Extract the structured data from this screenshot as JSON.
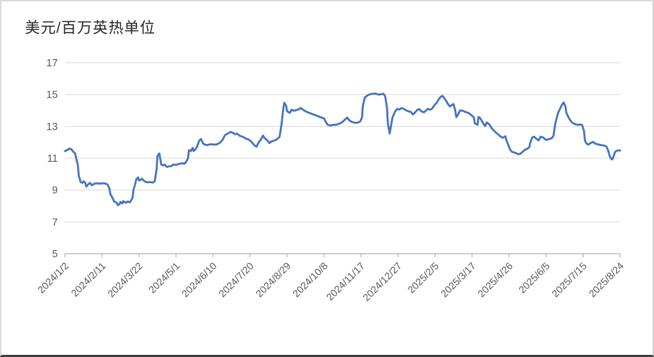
{
  "chart_data": {
    "type": "line",
    "title": "美元/百万英热单位",
    "grid": "horizontal",
    "legend": "none",
    "ylim": [
      5,
      17
    ],
    "ytick_step": 2,
    "y_tick_labels": [
      "17",
      "15",
      "13",
      "11",
      "9",
      "7",
      "5"
    ],
    "x_unit": "days since 2024/1/2",
    "x_total_days": 600,
    "x_tick_interval_days": 40,
    "x_tick_labels": [
      "2024/1/2",
      "2024/2/11",
      "2024/3/22",
      "2024/5/1",
      "2024/6/10",
      "2024/7/20",
      "2024/8/29",
      "2024/10/8",
      "2024/11/17",
      "2024/12/27",
      "2025/2/5",
      "2025/3/17",
      "2025/4/26",
      "2025/6/5",
      "2025/7/15",
      "2025/8/24"
    ],
    "colors": {
      "line": "#4472C4",
      "grid": "#d9d9d9",
      "axis": "#b0b0b0",
      "tick_label": "#595959",
      "title": "#262626"
    },
    "series": [
      {
        "points": [
          [
            0,
            11.45
          ],
          [
            2,
            11.5
          ],
          [
            5,
            11.6
          ],
          [
            7,
            11.55
          ],
          [
            9,
            11.4
          ],
          [
            11,
            11.3
          ],
          [
            12,
            11.05
          ],
          [
            14,
            10.55
          ],
          [
            15,
            9.9
          ],
          [
            17,
            9.5
          ],
          [
            19,
            9.45
          ],
          [
            20,
            9.55
          ],
          [
            22,
            9.45
          ],
          [
            23,
            9.22
          ],
          [
            25,
            9.35
          ],
          [
            27,
            9.45
          ],
          [
            29,
            9.3
          ],
          [
            32,
            9.4
          ],
          [
            35,
            9.42
          ],
          [
            38,
            9.4
          ],
          [
            41,
            9.43
          ],
          [
            44,
            9.4
          ],
          [
            46,
            9.35
          ],
          [
            48,
            9.1
          ],
          [
            49,
            8.75
          ],
          [
            52,
            8.45
          ],
          [
            53,
            8.28
          ],
          [
            56,
            8.2
          ],
          [
            57,
            8.05
          ],
          [
            59,
            8.12
          ],
          [
            60,
            8.25
          ],
          [
            62,
            8.15
          ],
          [
            63,
            8.3
          ],
          [
            66,
            8.2
          ],
          [
            68,
            8.28
          ],
          [
            70,
            8.22
          ],
          [
            71,
            8.3
          ],
          [
            73,
            8.5
          ],
          [
            74,
            9.0
          ],
          [
            76,
            9.4
          ],
          [
            77,
            9.65
          ],
          [
            79,
            9.8
          ],
          [
            80,
            9.6
          ],
          [
            82,
            9.65
          ],
          [
            83,
            9.72
          ],
          [
            85,
            9.6
          ],
          [
            87,
            9.52
          ],
          [
            89,
            9.48
          ],
          [
            92,
            9.5
          ],
          [
            95,
            9.47
          ],
          [
            97,
            9.55
          ],
          [
            99,
            10.3
          ],
          [
            100,
            11.15
          ],
          [
            102,
            11.3
          ],
          [
            104,
            10.6
          ],
          [
            106,
            10.55
          ],
          [
            108,
            10.6
          ],
          [
            110,
            10.45
          ],
          [
            113,
            10.5
          ],
          [
            115,
            10.5
          ],
          [
            117,
            10.6
          ],
          [
            120,
            10.58
          ],
          [
            122,
            10.62
          ],
          [
            124,
            10.65
          ],
          [
            127,
            10.68
          ],
          [
            129,
            10.65
          ],
          [
            131,
            10.78
          ],
          [
            133,
            11.0
          ],
          [
            134,
            11.5
          ],
          [
            136,
            11.45
          ],
          [
            138,
            11.65
          ],
          [
            139,
            11.45
          ],
          [
            141,
            11.55
          ],
          [
            143,
            11.75
          ],
          [
            145,
            12.1
          ],
          [
            147,
            12.2
          ],
          [
            149,
            11.95
          ],
          [
            151,
            11.85
          ],
          [
            154,
            11.83
          ],
          [
            158,
            11.88
          ],
          [
            161,
            11.85
          ],
          [
            164,
            11.87
          ],
          [
            167,
            11.95
          ],
          [
            170,
            12.12
          ],
          [
            173,
            12.45
          ],
          [
            176,
            12.55
          ],
          [
            179,
            12.65
          ],
          [
            182,
            12.58
          ],
          [
            184,
            12.5
          ],
          [
            186,
            12.55
          ],
          [
            189,
            12.4
          ],
          [
            192,
            12.35
          ],
          [
            195,
            12.25
          ],
          [
            199,
            12.15
          ],
          [
            202,
            12.0
          ],
          [
            205,
            11.8
          ],
          [
            207,
            11.72
          ],
          [
            209,
            11.95
          ],
          [
            212,
            12.2
          ],
          [
            214,
            12.42
          ],
          [
            216,
            12.25
          ],
          [
            219,
            12.1
          ],
          [
            221,
            11.95
          ],
          [
            223,
            12.05
          ],
          [
            226,
            12.1
          ],
          [
            229,
            12.18
          ],
          [
            232,
            12.35
          ],
          [
            234,
            13.1
          ],
          [
            236,
            14.1
          ],
          [
            237,
            14.48
          ],
          [
            239,
            14.3
          ],
          [
            240,
            13.95
          ],
          [
            243,
            13.85
          ],
          [
            245,
            14.05
          ],
          [
            247,
            13.98
          ],
          [
            249,
            14.0
          ],
          [
            253,
            14.08
          ],
          [
            255,
            14.15
          ],
          [
            258,
            14.02
          ],
          [
            261,
            13.92
          ],
          [
            264,
            13.85
          ],
          [
            267,
            13.78
          ],
          [
            270,
            13.72
          ],
          [
            273,
            13.65
          ],
          [
            276,
            13.58
          ],
          [
            280,
            13.5
          ],
          [
            282,
            13.28
          ],
          [
            284,
            13.1
          ],
          [
            287,
            13.05
          ],
          [
            290,
            13.1
          ],
          [
            293,
            13.1
          ],
          [
            297,
            13.18
          ],
          [
            300,
            13.28
          ],
          [
            303,
            13.45
          ],
          [
            305,
            13.55
          ],
          [
            307,
            13.4
          ],
          [
            310,
            13.28
          ],
          [
            314,
            13.22
          ],
          [
            317,
            13.25
          ],
          [
            319,
            13.3
          ],
          [
            321,
            13.55
          ],
          [
            322,
            14.3
          ],
          [
            324,
            14.8
          ],
          [
            327,
            14.95
          ],
          [
            330,
            15.02
          ],
          [
            333,
            15.05
          ],
          [
            336,
            15.05
          ],
          [
            339,
            15.0
          ],
          [
            342,
            15.02
          ],
          [
            344,
            15.05
          ],
          [
            346,
            14.9
          ],
          [
            348,
            14.2
          ],
          [
            349,
            13.2
          ],
          [
            351,
            12.55
          ],
          [
            352,
            12.9
          ],
          [
            354,
            13.55
          ],
          [
            357,
            13.95
          ],
          [
            359,
            14.1
          ],
          [
            361,
            14.05
          ],
          [
            364,
            14.15
          ],
          [
            366,
            14.1
          ],
          [
            369,
            14.0
          ],
          [
            371,
            13.95
          ],
          [
            374,
            13.9
          ],
          [
            376,
            13.75
          ],
          [
            378,
            13.85
          ],
          [
            381,
            14.05
          ],
          [
            383,
            14.08
          ],
          [
            385,
            13.95
          ],
          [
            388,
            13.88
          ],
          [
            390,
            13.98
          ],
          [
            392,
            14.1
          ],
          [
            395,
            14.05
          ],
          [
            397,
            14.12
          ],
          [
            399,
            14.3
          ],
          [
            402,
            14.5
          ],
          [
            404,
            14.7
          ],
          [
            406,
            14.85
          ],
          [
            408,
            14.92
          ],
          [
            409,
            14.85
          ],
          [
            412,
            14.6
          ],
          [
            414,
            14.4
          ],
          [
            416,
            14.25
          ],
          [
            419,
            14.38
          ],
          [
            420,
            14.4
          ],
          [
            422,
            13.95
          ],
          [
            423,
            13.58
          ],
          [
            425,
            13.75
          ],
          [
            427,
            14.0
          ],
          [
            430,
            13.98
          ],
          [
            433,
            13.9
          ],
          [
            436,
            13.85
          ],
          [
            439,
            13.72
          ],
          [
            442,
            13.55
          ],
          [
            443,
            13.18
          ],
          [
            446,
            13.1
          ],
          [
            447,
            13.6
          ],
          [
            449,
            13.5
          ],
          [
            452,
            13.2
          ],
          [
            454,
            13.02
          ],
          [
            456,
            13.25
          ],
          [
            459,
            13.1
          ],
          [
            461,
            12.9
          ],
          [
            464,
            12.7
          ],
          [
            467,
            12.55
          ],
          [
            470,
            12.4
          ],
          [
            473,
            12.28
          ],
          [
            476,
            12.38
          ],
          [
            477,
            12.15
          ],
          [
            479,
            11.85
          ],
          [
            481,
            11.55
          ],
          [
            483,
            11.4
          ],
          [
            486,
            11.35
          ],
          [
            488,
            11.3
          ],
          [
            490,
            11.25
          ],
          [
            493,
            11.3
          ],
          [
            495,
            11.42
          ],
          [
            497,
            11.52
          ],
          [
            500,
            11.6
          ],
          [
            502,
            11.7
          ],
          [
            503,
            12.0
          ],
          [
            505,
            12.3
          ],
          [
            507,
            12.35
          ],
          [
            510,
            12.2
          ],
          [
            512,
            12.12
          ],
          [
            514,
            12.35
          ],
          [
            517,
            12.3
          ],
          [
            519,
            12.18
          ],
          [
            521,
            12.15
          ],
          [
            523,
            12.2
          ],
          [
            526,
            12.25
          ],
          [
            528,
            12.4
          ],
          [
            530,
            13.2
          ],
          [
            533,
            13.85
          ],
          [
            535,
            14.1
          ],
          [
            537,
            14.35
          ],
          [
            539,
            14.5
          ],
          [
            541,
            14.25
          ],
          [
            542,
            13.85
          ],
          [
            544,
            13.6
          ],
          [
            546,
            13.4
          ],
          [
            548,
            13.25
          ],
          [
            551,
            13.15
          ],
          [
            554,
            13.1
          ],
          [
            557,
            13.12
          ],
          [
            559,
            13.08
          ],
          [
            561,
            12.7
          ],
          [
            562,
            12.1
          ],
          [
            564,
            11.9
          ],
          [
            566,
            11.85
          ],
          [
            568,
            11.95
          ],
          [
            571,
            12.02
          ],
          [
            573,
            11.92
          ],
          [
            576,
            11.87
          ],
          [
            579,
            11.83
          ],
          [
            582,
            11.8
          ],
          [
            585,
            11.75
          ],
          [
            587,
            11.5
          ],
          [
            589,
            11.1
          ],
          [
            591,
            10.92
          ],
          [
            592,
            10.95
          ],
          [
            594,
            11.3
          ],
          [
            595,
            11.42
          ],
          [
            597,
            11.48
          ],
          [
            599,
            11.5
          ],
          [
            600,
            11.48
          ]
        ]
      }
    ]
  }
}
